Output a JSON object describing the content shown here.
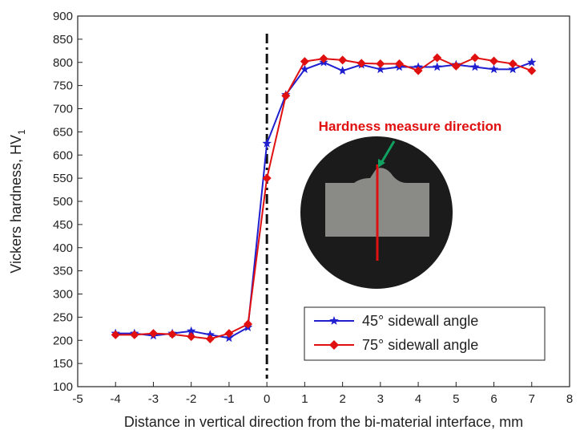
{
  "chart_data": {
    "type": "line",
    "x_label": "Distance in vertical direction from the bi-material interface, mm",
    "y_label": "Vickers hardness, HV",
    "y_label_subscript": "1",
    "annotation": "Hardness measure direction",
    "reference_line_x": 0,
    "x": [
      -4,
      -3.5,
      -3,
      -2.5,
      -2,
      -1.5,
      -1,
      -0.5,
      0,
      0.5,
      1,
      1.5,
      2,
      2.5,
      3,
      3.5,
      4,
      4.5,
      5,
      5.5,
      6,
      6.5,
      7
    ],
    "series": [
      {
        "name": "45° sidewall angle",
        "color": "#1f1fd0",
        "marker": "star",
        "values": [
          215,
          215,
          210,
          215,
          220,
          212,
          205,
          228,
          625,
          730,
          785,
          800,
          782,
          795,
          785,
          790,
          790,
          790,
          795,
          790,
          785,
          785,
          800
        ]
      },
      {
        "name": "75° sidewall angle",
        "color": "#e01010",
        "marker": "diamond",
        "values": [
          212,
          212,
          215,
          213,
          208,
          203,
          215,
          235,
          550,
          728,
          802,
          808,
          805,
          798,
          797,
          797,
          782,
          810,
          792,
          810,
          803,
          797,
          782
        ]
      }
    ],
    "xlim": [
      -5,
      8
    ],
    "xticks": [
      -5,
      -4,
      -3,
      -2,
      -1,
      0,
      1,
      2,
      3,
      4,
      5,
      6,
      7,
      8
    ],
    "ylim": [
      100,
      900
    ],
    "yticks": [
      100,
      150,
      200,
      250,
      300,
      350,
      400,
      450,
      500,
      550,
      600,
      650,
      700,
      750,
      800,
      850,
      900
    ]
  }
}
